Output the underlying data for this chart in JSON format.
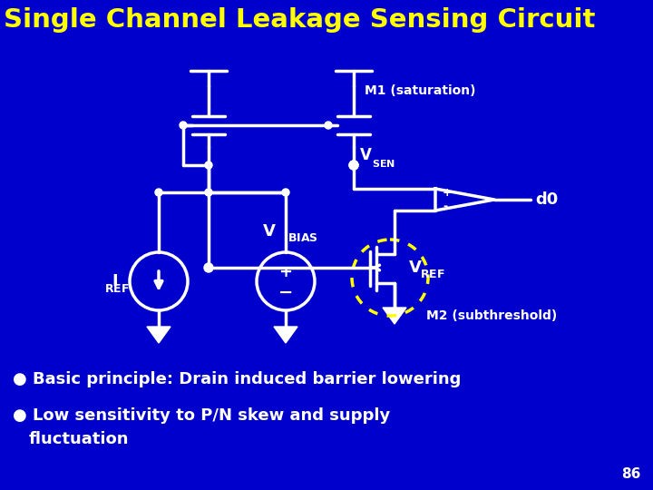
{
  "bg_color": "#0000cc",
  "title": "Single Channel Leakage Sensing Circuit",
  "title_color": "#ffff00",
  "title_fontsize": 21,
  "circuit_color": "white",
  "text_color": "white",
  "label_m1": "M1 (saturation)",
  "label_m2": "M2 (subthreshold)",
  "label_d0": "d0",
  "bullet1": "Basic principle: Drain induced barrier lowering",
  "bullet2": "Low sensitivity to P/N skew and supply",
  "bullet3": "  fluctuation",
  "page_number": "86",
  "dashed_color": "#ffff00"
}
